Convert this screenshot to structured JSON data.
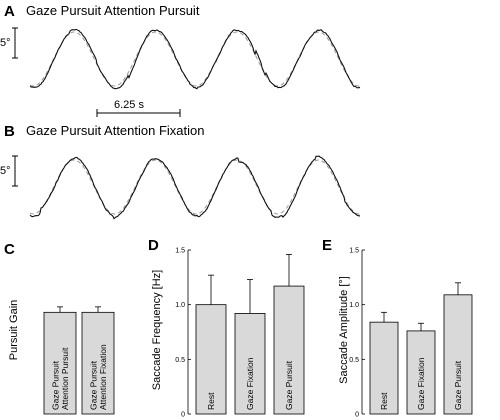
{
  "panels": {
    "a": {
      "letter": "A",
      "title": "Gaze Pursuit Attention Pursuit"
    },
    "b": {
      "letter": "B",
      "title": "Gaze Pursuit Attention Fixation"
    },
    "c": {
      "letter": "C"
    },
    "d": {
      "letter": "D"
    },
    "e": {
      "letter": "E"
    }
  },
  "scalebars": {
    "amplitude_label": "5°",
    "time_label": "6.25 s"
  },
  "colors": {
    "trace": "#111111",
    "target": "#999999",
    "bar_fill": "#d9d9d9",
    "bar_stroke": "#000000"
  },
  "chart_data": [
    {
      "id": "A",
      "type": "line",
      "title": "Gaze Pursuit Attention Pursuit",
      "xlabel": "",
      "ylabel": "",
      "series": [
        {
          "role": "eye-position",
          "style": "solid",
          "cycles": 4,
          "amplitude_deg": 10
        },
        {
          "role": "target-position",
          "style": "dashed",
          "cycles": 4,
          "amplitude_deg": 10
        }
      ],
      "scalebar": {
        "y": "5°",
        "x": "6.25 s"
      }
    },
    {
      "id": "B",
      "type": "line",
      "title": "Gaze Pursuit Attention Fixation",
      "xlabel": "",
      "ylabel": "",
      "series": [
        {
          "role": "eye-position",
          "style": "solid",
          "cycles": 4,
          "amplitude_deg": 10
        },
        {
          "role": "target-position",
          "style": "dashed",
          "cycles": 4,
          "amplitude_deg": 10
        }
      ],
      "scalebar": {
        "y": "5°"
      }
    },
    {
      "id": "C",
      "type": "bar",
      "categories": [
        "Gaze Pursuit Attention Pursuit",
        "Gaze Pursuit Attention Fixation"
      ],
      "category_lines": [
        [
          "Gaze Pursuit",
          "Attention Pursuit"
        ],
        [
          "Gaze Pursuit",
          "Attention Fixation"
        ]
      ],
      "values": [
        0.93,
        0.93
      ],
      "errors": [
        0.05,
        0.05
      ],
      "ylabel": "Pursuit Gain",
      "ylim": [
        0,
        1.5
      ],
      "yticks": [],
      "grid": false
    },
    {
      "id": "D",
      "type": "bar",
      "categories": [
        "Rest",
        "Gaze Fixation",
        "Gaze Pursuit"
      ],
      "category_lines": [
        [
          "Rest"
        ],
        [
          "Gaze Fixation"
        ],
        [
          "Gaze Pursuit"
        ]
      ],
      "values": [
        1.0,
        0.92,
        1.17
      ],
      "errors": [
        0.27,
        0.31,
        0.29
      ],
      "ylabel": "Saccade Frequency [Hz]",
      "ylim": [
        0,
        1.5
      ],
      "yticks": [
        "0",
        "0.5",
        "1.0",
        "1.5"
      ],
      "grid": false
    },
    {
      "id": "E",
      "type": "bar",
      "categories": [
        "Rest",
        "Gaze Fixation",
        "Gaze Pursuit"
      ],
      "category_lines": [
        [
          "Rest"
        ],
        [
          "Gaze Fixation"
        ],
        [
          "Gaze Pursuit"
        ]
      ],
      "values": [
        0.84,
        0.76,
        1.09
      ],
      "errors": [
        0.09,
        0.07,
        0.11
      ],
      "ylabel": "Saccade Amplitude [°]",
      "ylim": [
        0,
        1.5
      ],
      "yticks": [
        "0",
        "0.5",
        "1.0",
        "1.5"
      ],
      "grid": false
    }
  ]
}
